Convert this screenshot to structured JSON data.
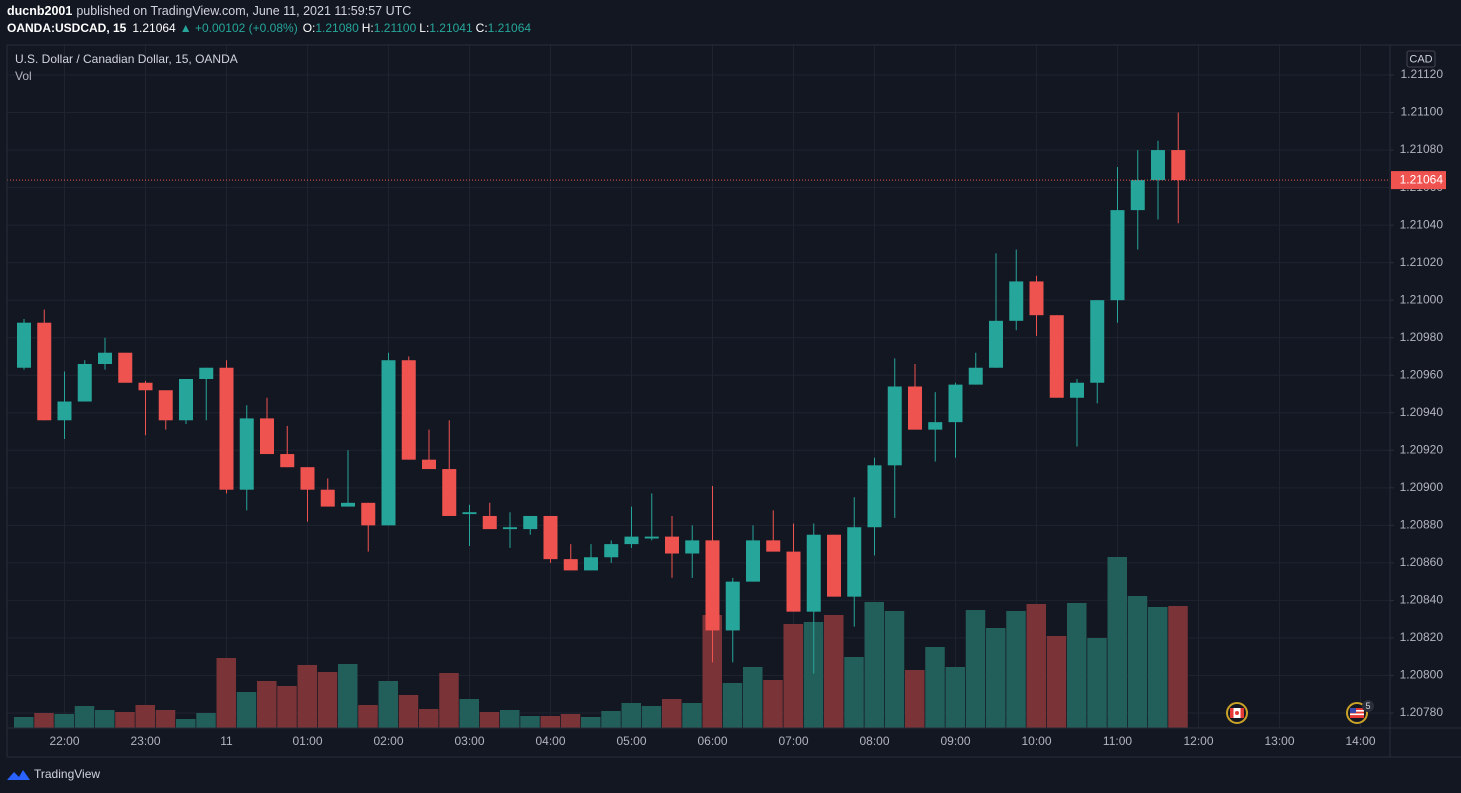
{
  "header": {
    "publisher": "ducnb2001",
    "published": "published on TradingView.com, June 11, 2021 11:59:57 UTC"
  },
  "quote": {
    "symbol": "OANDA:USDCAD, 15",
    "last": "1.21064",
    "change": "▲ +0.00102 (+0.08%)",
    "o_label": "O:",
    "o": "1.21080",
    "h_label": "H:",
    "h": "1.21100",
    "l_label": "L:",
    "l": "1.21041",
    "c_label": "C:",
    "c": "1.21064"
  },
  "footer": {
    "brand": "TradingView"
  },
  "chart_data": {
    "type": "candlestick",
    "legend_title": "U.S. Dollar / Canadian Dollar, 15, OANDA",
    "volume_label": "Vol",
    "currency": "CAD",
    "up_color": "#26a69a",
    "down_color": "#ef5350",
    "up_volume_color": "#225e5a",
    "down_volume_color": "#7a3336",
    "categories": [
      null,
      null,
      "22:00",
      null,
      null,
      null,
      "23:00",
      null,
      null,
      null,
      "11",
      null,
      null,
      null,
      "01:00",
      null,
      null,
      null,
      "02:00",
      null,
      null,
      null,
      "03:00",
      null,
      null,
      null,
      "04:00",
      null,
      null,
      null,
      "05:00",
      null,
      null,
      null,
      "06:00",
      null,
      null,
      null,
      "07:00",
      null,
      null,
      null,
      "08:00",
      null,
      null,
      null,
      "09:00",
      null,
      null,
      null,
      "10:00",
      null,
      null,
      null,
      "11:00",
      null,
      null,
      null,
      "12:00",
      null,
      null,
      null,
      "13:00",
      null,
      null,
      null,
      "14:00",
      null
    ],
    "open": [
      1.20964,
      1.20988,
      1.20936,
      1.20946,
      1.20966,
      1.20972,
      1.20956,
      1.20952,
      1.20936,
      1.20958,
      1.20964,
      1.20899,
      1.20937,
      1.20918,
      1.20911,
      1.20899,
      1.2089,
      1.20892,
      1.2088,
      1.20968,
      1.20915,
      1.2091,
      1.20886,
      1.20885,
      1.20878,
      1.20878,
      1.20885,
      1.20862,
      1.20856,
      1.20863,
      1.2087,
      1.20873,
      1.20874,
      1.20865,
      1.20872,
      1.20824,
      1.2085,
      1.20872,
      1.20866,
      1.20834,
      1.20875,
      1.20842,
      1.20879,
      1.20912,
      1.20954,
      1.20931,
      1.20935,
      1.20955,
      1.20964,
      1.20989,
      1.2101,
      1.20992,
      1.20948,
      1.20956,
      1.21,
      1.21048,
      1.21064,
      1.2108,
      null,
      null,
      null,
      null,
      null,
      null,
      null,
      null,
      null,
      null
    ],
    "high": [
      1.2099,
      1.20995,
      1.20962,
      1.20968,
      1.2098,
      1.20972,
      1.20957,
      1.20952,
      1.20958,
      1.20964,
      1.20968,
      1.20944,
      1.20948,
      1.20933,
      1.20911,
      1.20905,
      1.2092,
      1.20892,
      1.20972,
      1.2097,
      1.20931,
      1.20936,
      1.20891,
      1.20892,
      1.20887,
      1.20885,
      1.20885,
      1.2087,
      1.2087,
      1.20872,
      1.2089,
      1.20897,
      1.20885,
      1.2088,
      1.20901,
      1.20852,
      1.2088,
      1.20888,
      1.20881,
      1.20881,
      1.20875,
      1.20895,
      1.20916,
      1.20969,
      1.20966,
      1.20951,
      1.20956,
      1.20972,
      1.21025,
      1.21027,
      1.21013,
      1.20992,
      1.20958,
      1.21,
      1.21071,
      1.2108,
      1.21085,
      1.211,
      null,
      null,
      null,
      null,
      null,
      null,
      null,
      null,
      null,
      null
    ],
    "low": [
      1.20963,
      1.20936,
      1.20926,
      1.20946,
      1.20963,
      1.20956,
      1.20928,
      1.20931,
      1.20934,
      1.20936,
      1.20897,
      1.20888,
      1.20918,
      1.20911,
      1.20882,
      1.2089,
      1.2089,
      1.20866,
      1.2088,
      1.20915,
      1.2091,
      1.20885,
      1.20869,
      1.20878,
      1.20868,
      1.20875,
      1.2086,
      1.20856,
      1.20856,
      1.2086,
      1.20868,
      1.20872,
      1.20852,
      1.20852,
      1.20807,
      1.20807,
      1.2085,
      1.20866,
      1.20834,
      1.20801,
      1.20842,
      1.20826,
      1.20864,
      1.20884,
      1.20931,
      1.20914,
      1.20916,
      1.20955,
      1.20964,
      1.20984,
      1.20981,
      1.20948,
      1.20922,
      1.20945,
      1.20988,
      1.21027,
      1.21043,
      1.21041,
      null,
      null,
      null,
      null,
      null,
      null,
      null,
      null,
      null,
      null
    ],
    "close": [
      1.20988,
      1.20936,
      1.20946,
      1.20966,
      1.20972,
      1.20956,
      1.20952,
      1.20936,
      1.20958,
      1.20964,
      1.20899,
      1.20937,
      1.20918,
      1.20911,
      1.20899,
      1.2089,
      1.20892,
      1.2088,
      1.20968,
      1.20915,
      1.2091,
      1.20885,
      1.20887,
      1.20878,
      1.20879,
      1.20885,
      1.20862,
      1.20856,
      1.20863,
      1.2087,
      1.20874,
      1.20874,
      1.20865,
      1.20872,
      1.20824,
      1.2085,
      1.20872,
      1.20866,
      1.20834,
      1.20875,
      1.20842,
      1.20879,
      1.20912,
      1.20954,
      1.20931,
      1.20935,
      1.20955,
      1.20964,
      1.20989,
      1.2101,
      1.20992,
      1.20948,
      1.20956,
      1.21,
      1.21048,
      1.21064,
      1.2108,
      1.21064,
      null,
      null,
      null,
      null,
      null,
      null,
      null,
      null,
      null,
      null
    ],
    "volume": [
      11,
      15,
      14,
      22,
      18,
      16,
      23,
      18,
      9,
      15,
      70,
      36,
      47,
      42,
      63,
      56,
      64,
      23,
      47,
      33,
      19,
      55,
      29,
      16,
      18,
      12,
      12,
      14,
      11,
      17,
      25,
      22,
      29,
      25,
      113,
      45,
      61,
      48,
      104,
      106,
      113,
      71,
      126,
      117,
      58,
      81,
      61,
      118,
      100,
      117,
      124,
      92,
      125,
      90,
      171,
      132,
      121,
      122,
      null,
      null,
      null,
      null,
      null,
      null,
      null,
      null,
      null,
      null
    ],
    "volume_ylim": [
      0,
      400
    ],
    "ylim": [
      1.20772,
      1.21136
    ],
    "yticks": [
      {
        "value": 1.2078,
        "label": "1.20780"
      },
      {
        "value": 1.208,
        "label": "1.20800"
      },
      {
        "value": 1.2082,
        "label": "1.20820"
      },
      {
        "value": 1.2084,
        "label": "1.20840"
      },
      {
        "value": 1.2086,
        "label": "1.20860"
      },
      {
        "value": 1.2088,
        "label": "1.20880"
      },
      {
        "value": 1.209,
        "label": "1.20900"
      },
      {
        "value": 1.2092,
        "label": "1.20920"
      },
      {
        "value": 1.2094,
        "label": "1.20940"
      },
      {
        "value": 1.2096,
        "label": "1.20960"
      },
      {
        "value": 1.2098,
        "label": "1.20980"
      },
      {
        "value": 1.21,
        "label": "1.21000"
      },
      {
        "value": 1.2102,
        "label": "1.21020"
      },
      {
        "value": 1.2104,
        "label": "1.21040"
      },
      {
        "value": 1.2106,
        "label": "1.21060"
      },
      {
        "value": 1.2108,
        "label": "1.21080"
      },
      {
        "value": 1.211,
        "label": "1.21100"
      },
      {
        "value": 1.2112,
        "label": "1.21120"
      }
    ],
    "grid": true,
    "last_price": {
      "value": 1.21064,
      "label": "1.21064"
    },
    "event_badge": "5"
  }
}
